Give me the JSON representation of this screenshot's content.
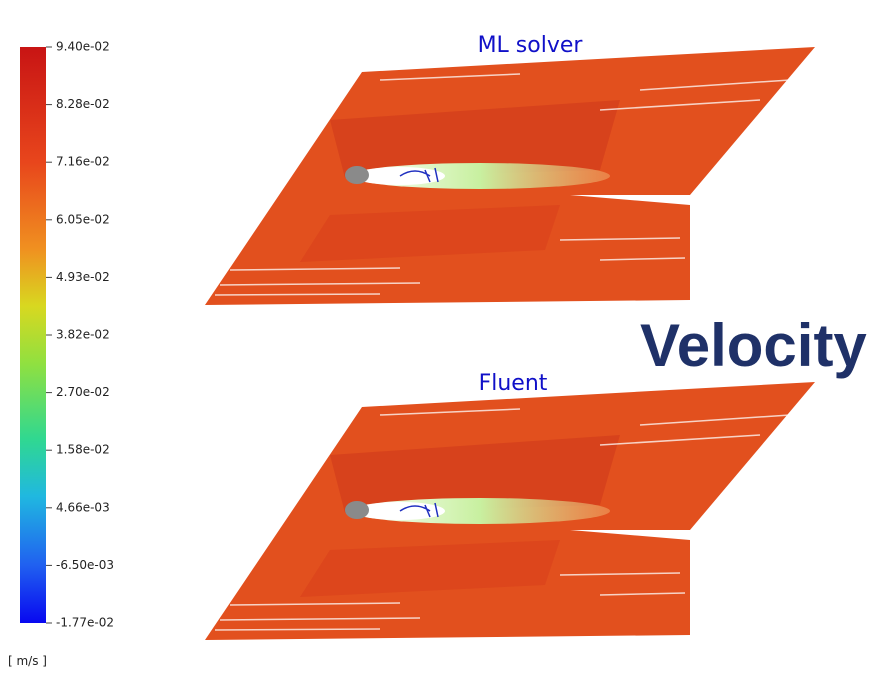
{
  "colorbar": {
    "ticks": [
      "9.40e-02",
      "8.28e-02",
      "7.16e-02",
      "6.05e-02",
      "4.93e-02",
      "3.82e-02",
      "2.70e-02",
      "1.58e-02",
      "4.66e-03",
      "-6.50e-03",
      "-1.77e-02"
    ],
    "unit": "[ m/s ]"
  },
  "panels": [
    {
      "title": "ML solver"
    },
    {
      "title": "Fluent"
    }
  ],
  "label": "Velocity"
}
